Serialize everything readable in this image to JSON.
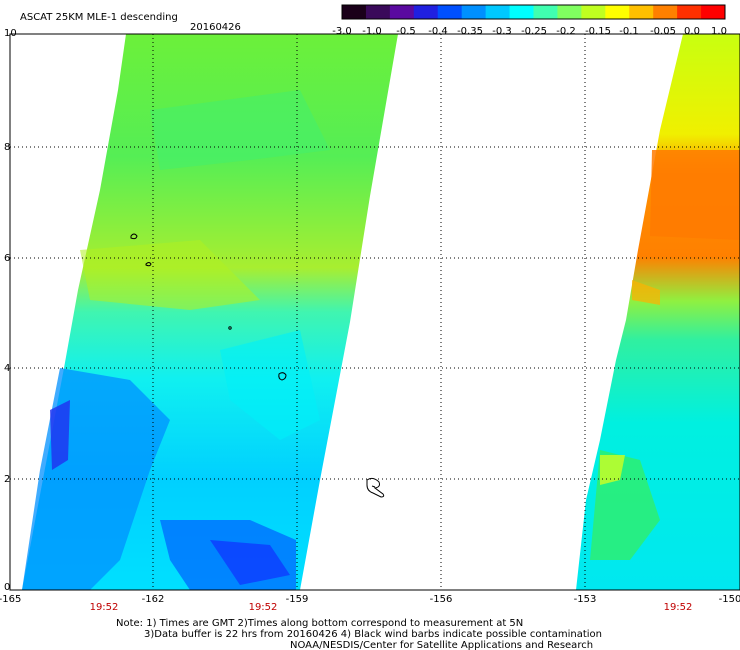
{
  "header": {
    "title": "ASCAT 25KM MLE-1 descending",
    "date": "20160426"
  },
  "colorbar": {
    "labels": [
      "-3.0",
      "-1.0",
      "-0.5",
      "-0.4",
      "-0.35",
      "-0.3",
      "-0.25",
      "-0.2",
      "-0.15",
      "-0.1",
      "-0.05",
      "0.0",
      "1.0"
    ],
    "colors": [
      "#1a0019",
      "#3a0a5a",
      "#5a0aa0",
      "#2020e0",
      "#0050ff",
      "#0090ff",
      "#00c8ff",
      "#00ffff",
      "#40ffb0",
      "#80ff60",
      "#c0ff20",
      "#ffff00",
      "#ffc000",
      "#ff8000",
      "#ff3000",
      "#ff0000"
    ]
  },
  "map": {
    "x_ticks": [
      "-165",
      "-162",
      "-159",
      "-156",
      "-153",
      "-150"
    ],
    "y_ticks": [
      "0",
      "2",
      "4",
      "6",
      "8",
      "10"
    ],
    "time_labels": [
      "19:52",
      "19:52",
      "19:52"
    ],
    "grid": true
  },
  "notes": {
    "line1": "Note: 1) Times are GMT 2)Times along bottom correspond to measurement at 5N",
    "line2": "3)Data buffer is 22 hrs from 20160426 4) Black wind barbs indicate possible contamination",
    "line3": "NOAA/NESDIS/Center for Satellite Applications and Research"
  }
}
